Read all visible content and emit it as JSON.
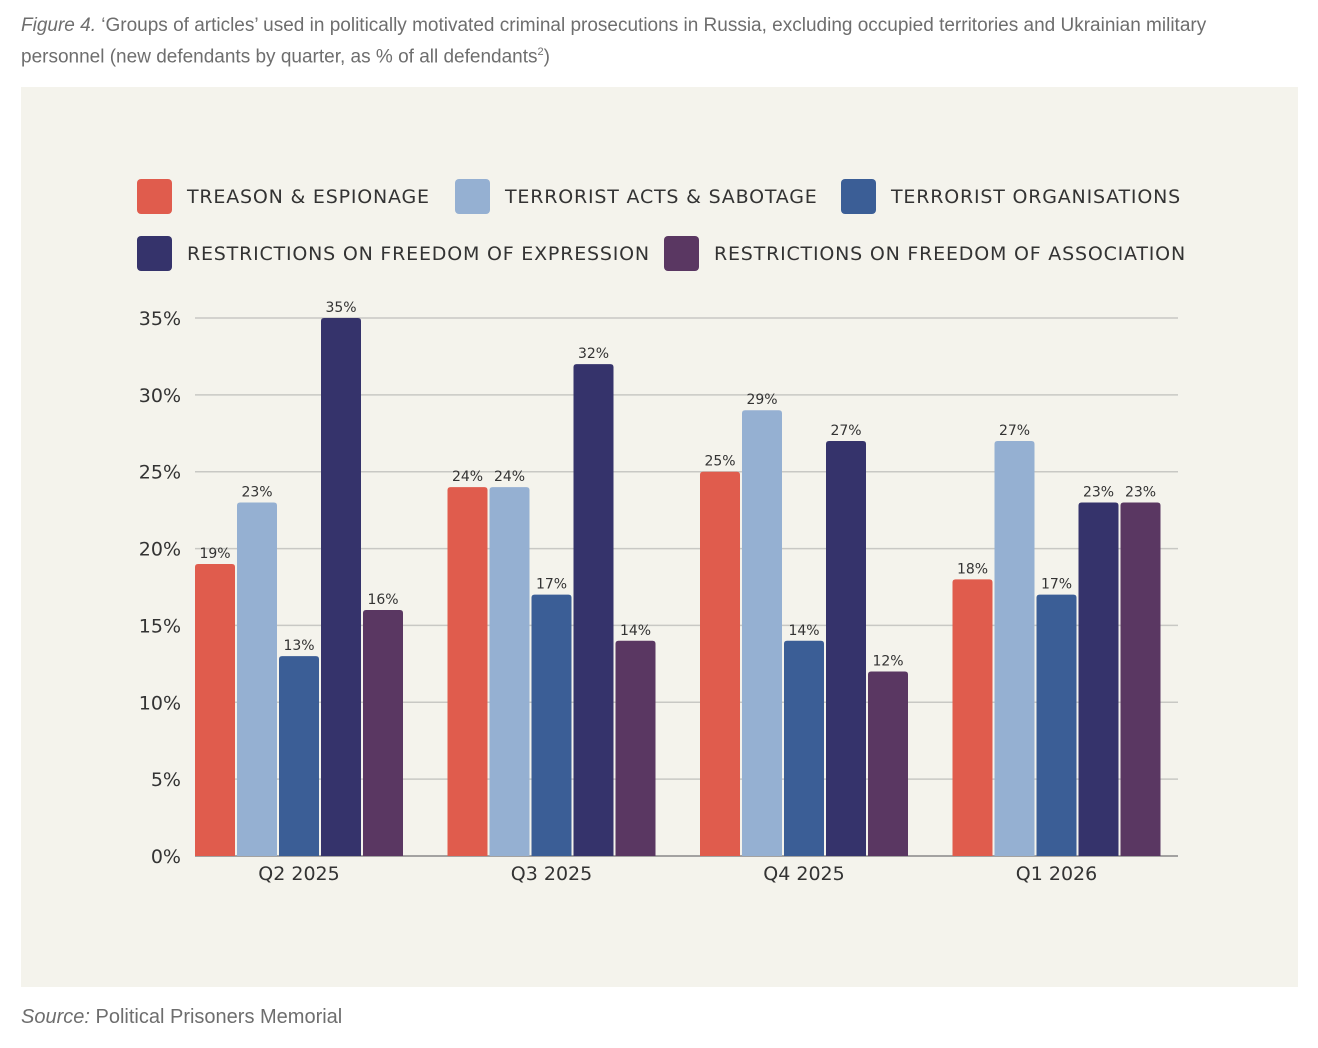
{
  "caption": {
    "label": "Figure 4.",
    "text": "‘Groups of articles’ used in politically motivated criminal prosecutions in Russia, excluding occupied territories and Ukrainian military personnel (new defendants by quarter, as % of all defendants",
    "footnote": "2",
    "close": ")"
  },
  "source": {
    "label": "Source:",
    "text": "Political Prisoners Memorial"
  },
  "chart_data": {
    "type": "bar",
    "categories": [
      "Q2 2025",
      "Q3 2025",
      "Q4 2025",
      "Q1 2026"
    ],
    "series": [
      {
        "name": "TREASON & ESPIONAGE",
        "color": "#e05c4d",
        "values": [
          19,
          24,
          25,
          18
        ]
      },
      {
        "name": "TERRORIST ACTS & SABOTAGE",
        "color": "#95b0d2",
        "values": [
          23,
          24,
          29,
          27
        ]
      },
      {
        "name": "TERRORIST ORGANISATIONS",
        "color": "#3b5e96",
        "values": [
          13,
          17,
          14,
          17
        ]
      },
      {
        "name": "RESTRICTIONS ON FREEDOM OF EXPRESSION",
        "color": "#35336b",
        "values": [
          35,
          32,
          27,
          23
        ]
      },
      {
        "name": "RESTRICTIONS ON FREEDOM OF ASSOCIATION",
        "color": "#5a3762",
        "values": [
          16,
          14,
          12,
          23
        ]
      }
    ],
    "yticks": [
      "0%",
      "5%",
      "10%",
      "15%",
      "20%",
      "25%",
      "30%",
      "35%"
    ],
    "ylim": [
      0,
      35
    ],
    "value_suffix": "%",
    "grid": true,
    "legend": "top"
  }
}
